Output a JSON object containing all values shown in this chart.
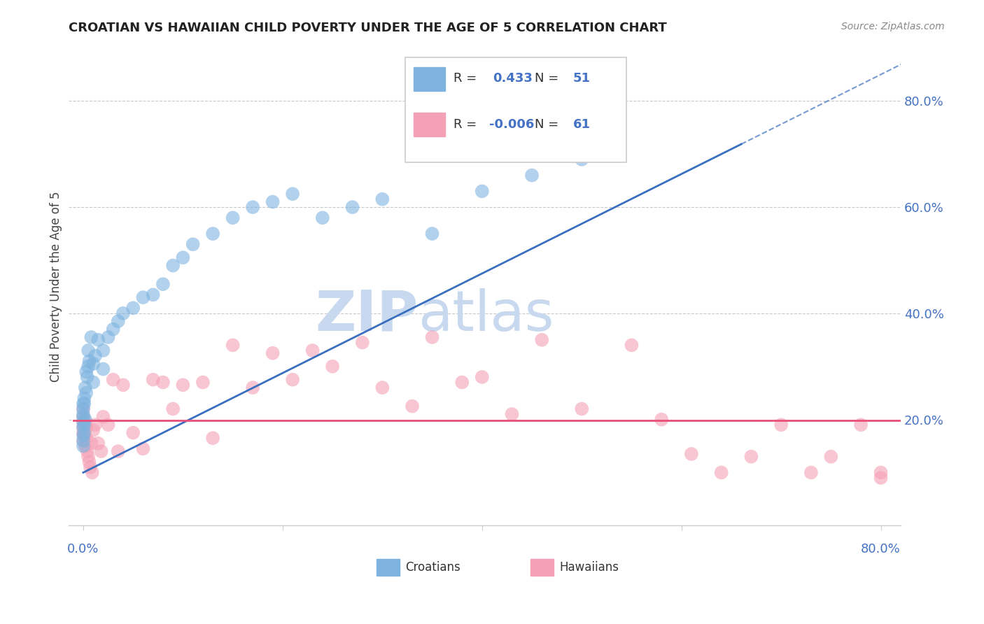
{
  "title": "CROATIAN VS HAWAIIAN CHILD POVERTY UNDER THE AGE OF 5 CORRELATION CHART",
  "source": "Source: ZipAtlas.com",
  "ylabel": "Child Poverty Under the Age of 5",
  "croatian_color": "#7EB3E0",
  "hawaiian_color": "#F4A0B5",
  "croatian_line_color": "#3A6FBF",
  "hawaiian_line_color": "#E8507A",
  "number_color": "#4472C4",
  "croatian_R": 0.433,
  "croatian_N": 51,
  "hawaiian_R": -0.006,
  "hawaiian_N": 61,
  "watermark_color": "#C8D9EF",
  "xlim": [
    0.0,
    0.8
  ],
  "ylim": [
    0.0,
    0.9
  ],
  "grid_color": "#BBBBBB",
  "axis_color": "#CCCCCC",
  "cr_x": [
    0.0,
    0.0,
    0.0,
    0.0,
    0.0,
    0.0,
    0.0,
    0.0,
    0.0,
    0.001,
    0.001,
    0.001,
    0.001,
    0.002,
    0.002,
    0.003,
    0.003,
    0.004,
    0.005,
    0.005,
    0.006,
    0.008,
    0.01,
    0.01,
    0.012,
    0.015,
    0.02,
    0.02,
    0.025,
    0.03,
    0.035,
    0.04,
    0.05,
    0.06,
    0.07,
    0.08,
    0.09,
    0.1,
    0.11,
    0.13,
    0.15,
    0.17,
    0.19,
    0.21,
    0.24,
    0.27,
    0.3,
    0.35,
    0.4,
    0.45,
    0.5
  ],
  "cr_y": [
    0.17,
    0.185,
    0.195,
    0.205,
    0.21,
    0.22,
    0.23,
    0.16,
    0.15,
    0.175,
    0.19,
    0.23,
    0.24,
    0.2,
    0.26,
    0.25,
    0.29,
    0.28,
    0.3,
    0.33,
    0.31,
    0.355,
    0.27,
    0.305,
    0.32,
    0.35,
    0.295,
    0.33,
    0.355,
    0.37,
    0.385,
    0.4,
    0.41,
    0.43,
    0.435,
    0.455,
    0.49,
    0.505,
    0.53,
    0.55,
    0.58,
    0.6,
    0.61,
    0.625,
    0.58,
    0.6,
    0.615,
    0.55,
    0.63,
    0.66,
    0.69
  ],
  "hw_x": [
    0.0,
    0.0,
    0.0,
    0.0,
    0.0,
    0.0,
    0.001,
    0.001,
    0.002,
    0.002,
    0.003,
    0.003,
    0.004,
    0.005,
    0.006,
    0.007,
    0.008,
    0.009,
    0.01,
    0.012,
    0.015,
    0.018,
    0.02,
    0.025,
    0.03,
    0.035,
    0.04,
    0.05,
    0.06,
    0.07,
    0.08,
    0.09,
    0.1,
    0.12,
    0.13,
    0.15,
    0.17,
    0.19,
    0.21,
    0.23,
    0.25,
    0.28,
    0.3,
    0.33,
    0.35,
    0.38,
    0.4,
    0.43,
    0.46,
    0.5,
    0.55,
    0.58,
    0.61,
    0.64,
    0.67,
    0.7,
    0.73,
    0.75,
    0.78,
    0.8,
    0.8
  ],
  "hw_y": [
    0.175,
    0.185,
    0.195,
    0.205,
    0.22,
    0.16,
    0.17,
    0.175,
    0.195,
    0.15,
    0.185,
    0.165,
    0.14,
    0.13,
    0.12,
    0.11,
    0.155,
    0.1,
    0.18,
    0.19,
    0.155,
    0.14,
    0.205,
    0.19,
    0.275,
    0.14,
    0.265,
    0.175,
    0.145,
    0.275,
    0.27,
    0.22,
    0.265,
    0.27,
    0.165,
    0.34,
    0.26,
    0.325,
    0.275,
    0.33,
    0.3,
    0.345,
    0.26,
    0.225,
    0.355,
    0.27,
    0.28,
    0.21,
    0.35,
    0.22,
    0.34,
    0.2,
    0.135,
    0.1,
    0.13,
    0.19,
    0.1,
    0.13,
    0.19,
    0.09,
    0.1
  ]
}
